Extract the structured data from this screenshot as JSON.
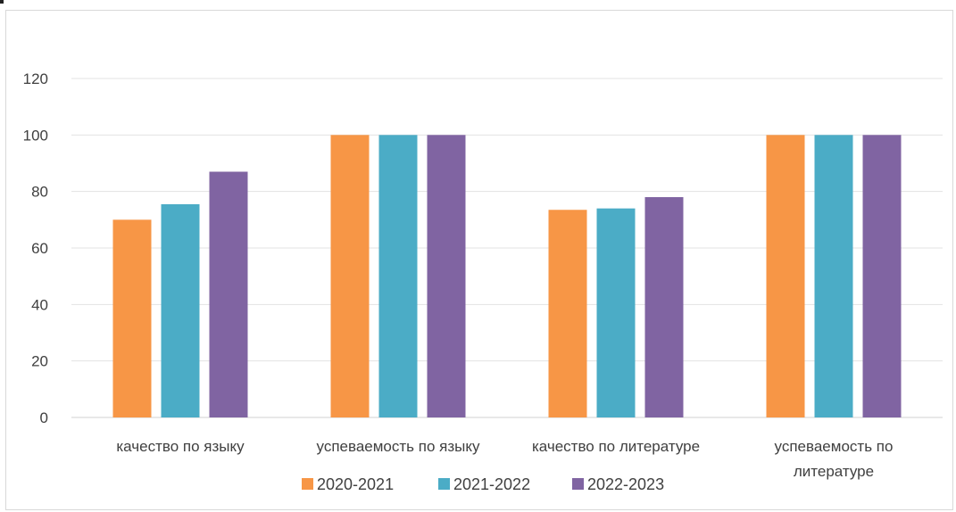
{
  "chart_data": {
    "type": "bar",
    "title": "",
    "xlabel": "",
    "ylabel": "",
    "categories": [
      [
        "качество по языку"
      ],
      [
        "успеваемость по языку"
      ],
      [
        "качество по литературе"
      ],
      [
        "успеваемость по",
        "литературе"
      ]
    ],
    "series": [
      {
        "name": "2020-2021",
        "color": "#F79646",
        "values": [
          70,
          100,
          73.5,
          100
        ]
      },
      {
        "name": "2021-2022",
        "color": "#4BACC6",
        "values": [
          75.5,
          100,
          74,
          100
        ]
      },
      {
        "name": "2022-2023",
        "color": "#8064A2",
        "values": [
          87,
          100,
          78,
          100
        ]
      }
    ],
    "ylim": [
      0,
      120
    ],
    "yticks": [
      0,
      20,
      40,
      60,
      80,
      100,
      120
    ],
    "grid": true,
    "legend_position": "bottom"
  }
}
